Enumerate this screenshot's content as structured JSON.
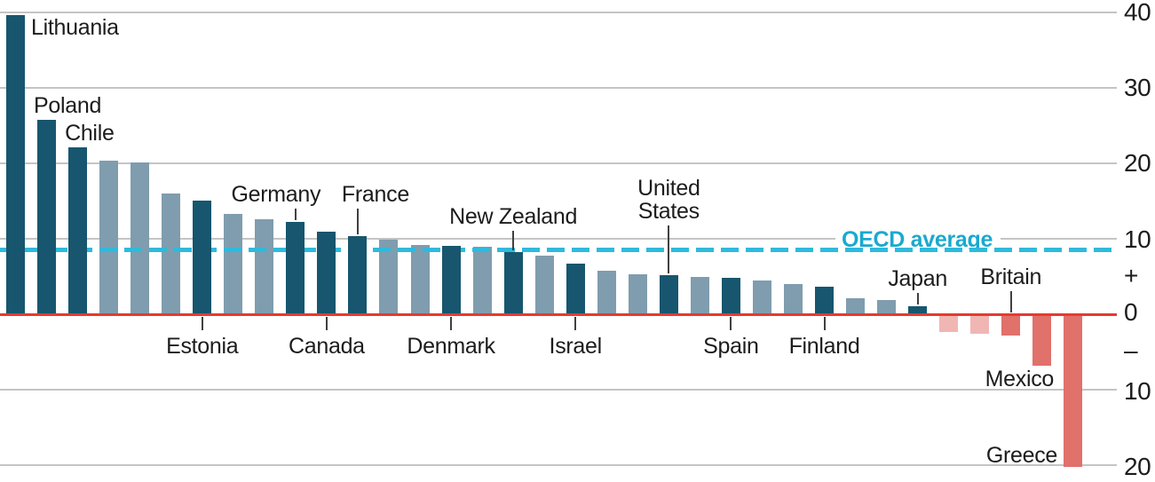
{
  "chart_data": {
    "type": "bar",
    "ylim": [
      -20,
      40
    ],
    "grid": "horizontal",
    "axis_side": "right",
    "y_axis_labels": [
      "40",
      "30",
      "20",
      "10",
      "+",
      "0",
      "–",
      "10",
      "20"
    ],
    "gridline_values": [
      40,
      30,
      20,
      10,
      -10,
      -20
    ],
    "average_line": {
      "label": "OECD average",
      "value": 8.5
    },
    "bars": [
      {
        "label": "Lithuania",
        "value": 39.7,
        "shade": "dark",
        "label_style": "right"
      },
      {
        "label": "Poland",
        "value": 25.8,
        "shade": "dark",
        "label_style": "above"
      },
      {
        "label": "Chile",
        "value": 22.1,
        "shade": "dark",
        "label_style": "above"
      },
      {
        "label": "",
        "value": 20.4,
        "shade": "light"
      },
      {
        "label": "",
        "value": 20.1,
        "shade": "light"
      },
      {
        "label": "",
        "value": 16.0,
        "shade": "light"
      },
      {
        "label": "Estonia",
        "value": 15.1,
        "shade": "dark",
        "label_style": "below"
      },
      {
        "label": "",
        "value": 13.3,
        "shade": "light"
      },
      {
        "label": "",
        "value": 12.6,
        "shade": "light"
      },
      {
        "label": "Germany",
        "value": 12.2,
        "shade": "dark",
        "label_style": "above-pointer"
      },
      {
        "label": "Canada",
        "value": 10.9,
        "shade": "dark",
        "label_style": "below"
      },
      {
        "label": "France",
        "value": 10.4,
        "shade": "dark",
        "label_style": "above-pointer"
      },
      {
        "label": "",
        "value": 9.9,
        "shade": "light"
      },
      {
        "label": "",
        "value": 9.2,
        "shade": "light"
      },
      {
        "label": "Denmark",
        "value": 9.1,
        "shade": "dark",
        "label_style": "below"
      },
      {
        "label": "",
        "value": 9.0,
        "shade": "light"
      },
      {
        "label": "New Zealand",
        "value": 8.2,
        "shade": "dark",
        "label_style": "above-pointer"
      },
      {
        "label": "",
        "value": 7.8,
        "shade": "light"
      },
      {
        "label": "Israel",
        "value": 6.7,
        "shade": "dark",
        "label_style": "below"
      },
      {
        "label": "",
        "value": 5.8,
        "shade": "light"
      },
      {
        "label": "",
        "value": 5.3,
        "shade": "light"
      },
      {
        "label": "United States",
        "value": 5.2,
        "shade": "dark",
        "label_style": "above-pointer"
      },
      {
        "label": "",
        "value": 4.9,
        "shade": "light"
      },
      {
        "label": "Spain",
        "value": 4.8,
        "shade": "dark",
        "label_style": "below"
      },
      {
        "label": "",
        "value": 4.5,
        "shade": "light"
      },
      {
        "label": "",
        "value": 4.0,
        "shade": "light"
      },
      {
        "label": "Finland",
        "value": 3.7,
        "shade": "dark",
        "label_style": "below"
      },
      {
        "label": "",
        "value": 2.1,
        "shade": "light"
      },
      {
        "label": "",
        "value": 1.9,
        "shade": "light"
      },
      {
        "label": "Japan",
        "value": 1.1,
        "shade": "dark",
        "label_style": "above-pointer"
      },
      {
        "label": "",
        "value": -2.2,
        "shade": "pink"
      },
      {
        "label": "",
        "value": -2.4,
        "shade": "pink"
      },
      {
        "label": "Britain",
        "value": -2.6,
        "shade": "red",
        "label_style": "above-pointer"
      },
      {
        "label": "Mexico",
        "value": -6.7,
        "shade": "red",
        "label_style": "left-end"
      },
      {
        "label": "Greece",
        "value": -20.0,
        "shade": "red",
        "label_style": "left-end"
      }
    ],
    "colors": {
      "dark_bar": "#17566e",
      "light_bar": "#7f9dae",
      "pink_bar": "#f0b6b4",
      "red_bar": "#e0716b",
      "zero_line": "#e63a2e",
      "gridline": "#c3c5c5",
      "average_line": "#2ebadd",
      "average_label_text": "#1aa9cf",
      "label_text": "#1c1c1c",
      "pointer": "#404040"
    }
  }
}
